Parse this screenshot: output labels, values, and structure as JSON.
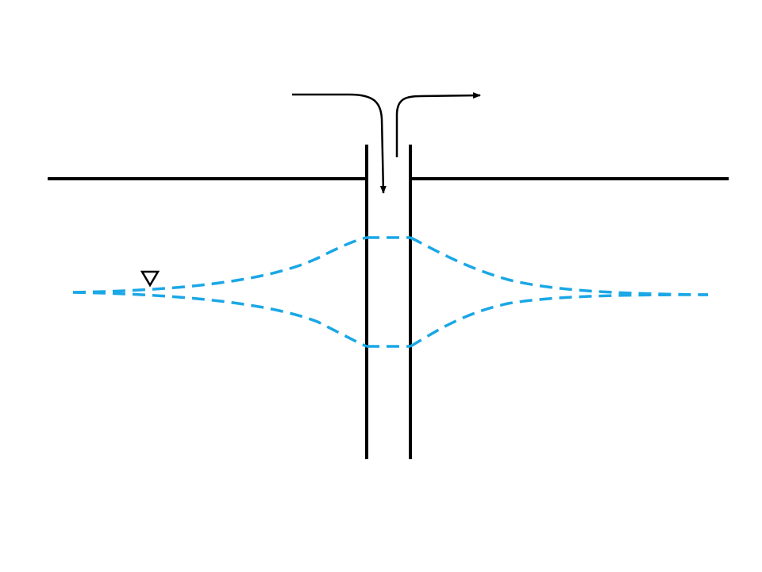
{
  "diagram": {
    "colors": {
      "line": "#000000",
      "water": "#1aa7e6",
      "background": "#ffffff"
    },
    "elements": {
      "ground_surface": "ground-line",
      "well_casing": "well-walls",
      "inflow_arrow": "arrow-in",
      "outflow_arrow": "arrow-out",
      "water_table_symbol": "triangle-down-icon",
      "cone_of_depression": "drawdown-curve",
      "mound_of_recharge": "mound-curve"
    }
  }
}
